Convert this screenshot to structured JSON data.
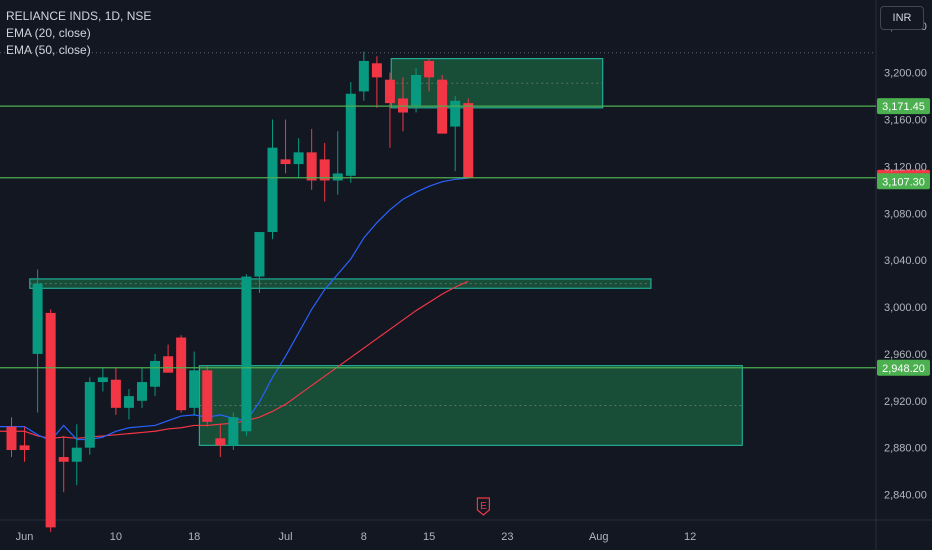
{
  "legend": {
    "symbol": "RELIANCE INDS, 1D, NSE",
    "ema20": "EMA (20, close)",
    "ema50": "EMA (50, close)"
  },
  "currency": "INR",
  "colors": {
    "background": "#131722",
    "up": "#089981",
    "down": "#f23645",
    "ema20": "#2962ff",
    "ema50": "#f23645",
    "zone_fill": "#1e7a4a",
    "zone_border": "#22ab94",
    "hline": "#4caf50"
  },
  "event_marker": "E",
  "chart_data": {
    "type": "candlestick",
    "title": "RELIANCE INDS, 1D, NSE",
    "ylim": [
      2820,
      3262
    ],
    "y_ticks": [
      "3,240.00",
      "3,200.00",
      "3,160.00",
      "3,120.00",
      "3,080.00",
      "3,040.00",
      "3,000.00",
      "2,960.00",
      "2,920.00",
      "2,880.00",
      "2,840.00"
    ],
    "y_tick_values": [
      3240,
      3200,
      3160,
      3120,
      3080,
      3040,
      3000,
      2960,
      2920,
      2880,
      2840
    ],
    "x_labels": [
      "Jun",
      "10",
      "18",
      "Jul",
      "8",
      "15",
      "23",
      "Aug",
      "12"
    ],
    "x_label_slots": [
      1,
      8,
      14,
      21,
      27,
      32,
      38,
      45,
      52
    ],
    "candles": [
      {
        "o": 2898,
        "h": 2906,
        "l": 2872,
        "c": 2878
      },
      {
        "o": 2882,
        "h": 2898,
        "l": 2868,
        "c": 2878
      },
      {
        "o": 2960,
        "h": 3032,
        "l": 2910,
        "c": 3020
      },
      {
        "o": 2995,
        "h": 2998,
        "l": 2808,
        "c": 2812
      },
      {
        "o": 2872,
        "h": 2890,
        "l": 2842,
        "c": 2868
      },
      {
        "o": 2868,
        "h": 2900,
        "l": 2848,
        "c": 2880
      },
      {
        "o": 2880,
        "h": 2940,
        "l": 2874,
        "c": 2936
      },
      {
        "o": 2936,
        "h": 2948,
        "l": 2928,
        "c": 2940
      },
      {
        "o": 2938,
        "h": 2948,
        "l": 2908,
        "c": 2914
      },
      {
        "o": 2914,
        "h": 2930,
        "l": 2904,
        "c": 2924
      },
      {
        "o": 2920,
        "h": 2948,
        "l": 2914,
        "c": 2936
      },
      {
        "o": 2932,
        "h": 2960,
        "l": 2924,
        "c": 2954
      },
      {
        "o": 2958,
        "h": 2968,
        "l": 2944,
        "c": 2944
      },
      {
        "o": 2974,
        "h": 2976,
        "l": 2910,
        "c": 2912
      },
      {
        "o": 2914,
        "h": 2962,
        "l": 2908,
        "c": 2946
      },
      {
        "o": 2946,
        "h": 2950,
        "l": 2898,
        "c": 2902
      },
      {
        "o": 2888,
        "h": 2900,
        "l": 2872,
        "c": 2882
      },
      {
        "o": 2882,
        "h": 2910,
        "l": 2878,
        "c": 2906
      },
      {
        "o": 2894,
        "h": 3028,
        "l": 2890,
        "c": 3026
      },
      {
        "o": 3026,
        "h": 3064,
        "l": 3012,
        "c": 3064
      },
      {
        "o": 3064,
        "h": 3160,
        "l": 3058,
        "c": 3136
      },
      {
        "o": 3126,
        "h": 3160,
        "l": 3114,
        "c": 3122
      },
      {
        "o": 3122,
        "h": 3144,
        "l": 3110,
        "c": 3132
      },
      {
        "o": 3132,
        "h": 3152,
        "l": 3100,
        "c": 3108
      },
      {
        "o": 3126,
        "h": 3140,
        "l": 3090,
        "c": 3108
      },
      {
        "o": 3108,
        "h": 3150,
        "l": 3096,
        "c": 3114
      },
      {
        "o": 3112,
        "h": 3192,
        "l": 3106,
        "c": 3182
      },
      {
        "o": 3184,
        "h": 3218,
        "l": 3176,
        "c": 3210
      },
      {
        "o": 3208,
        "h": 3214,
        "l": 3170,
        "c": 3196
      },
      {
        "o": 3194,
        "h": 3200,
        "l": 3136,
        "c": 3174
      },
      {
        "o": 3178,
        "h": 3196,
        "l": 3150,
        "c": 3166
      },
      {
        "o": 3172,
        "h": 3204,
        "l": 3166,
        "c": 3198
      },
      {
        "o": 3210,
        "h": 3212,
        "l": 3184,
        "c": 3196
      },
      {
        "o": 3194,
        "h": 3198,
        "l": 3148,
        "c": 3148
      },
      {
        "o": 3154,
        "h": 3180,
        "l": 3116,
        "c": 3176
      },
      {
        "o": 3174,
        "h": 3178,
        "l": 3110,
        "c": 3110
      }
    ],
    "ema20": [
      2898,
      2891,
      2886,
      2899,
      2887,
      2887,
      2889,
      2894,
      2897,
      2898,
      2899,
      2903,
      2907,
      2908,
      2906,
      2908,
      2905,
      2903,
      2919,
      2940,
      2958,
      2978,
      2998,
      3015,
      3028,
      3041,
      3059,
      3072,
      3083,
      3092,
      3098,
      3103,
      3107,
      3109,
      3110
    ],
    "ema50": [
      2894,
      2890,
      2888,
      2889,
      2888,
      2889,
      2890,
      2891,
      2892,
      2893,
      2894,
      2896,
      2897,
      2899,
      2899,
      2900,
      2901,
      2903,
      2906,
      2911,
      2917,
      2925,
      2933,
      2941,
      2949,
      2957,
      2965,
      2973,
      2981,
      2989,
      2997,
      3004,
      3011,
      3017,
      3022
    ],
    "ema_start_slot": 1,
    "zones": [
      {
        "slot_start": 1.4,
        "slot_end": 49,
        "y_low": 3016,
        "y_high": 3024
      },
      {
        "slot_start": 14.4,
        "slot_end": 56,
        "y_low": 2882,
        "y_high": 2950
      },
      {
        "slot_start": 29.1,
        "slot_end": 45.3,
        "y_low": 3170,
        "y_high": 3212
      }
    ],
    "hlines": [
      {
        "y": 3171.45,
        "label": "3,171.45",
        "color": "#4caf50"
      },
      {
        "y": 3110.3,
        "label": "3,110.30",
        "color": "#f23645"
      },
      {
        "y": 2948.2,
        "label": "2,948.20",
        "color": "#4caf50"
      }
    ],
    "last_price_lines": [
      {
        "y": 3107.3,
        "label": "3,107.30",
        "color": "#4caf50"
      }
    ],
    "dotted_line_y": 3217
  }
}
